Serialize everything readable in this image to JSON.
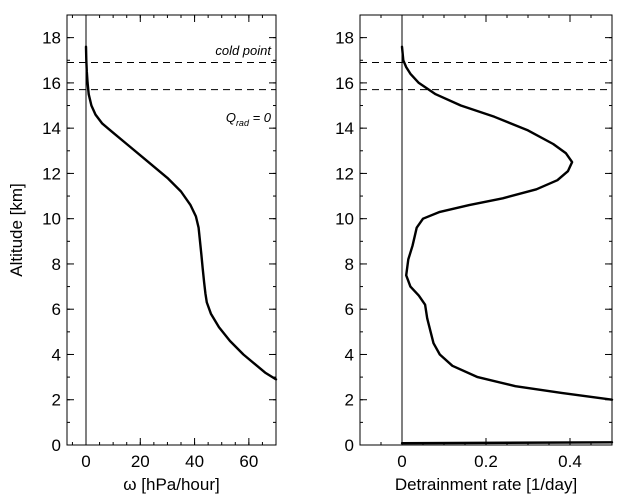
{
  "chart_data": [
    {
      "type": "line",
      "xlabel": "ω [hPa/hour]",
      "ylabel": "Altitude [km]",
      "xlim": [
        -7,
        70
      ],
      "ylim": [
        0,
        19
      ],
      "xticks": [
        0,
        20,
        40,
        60
      ],
      "yticks": [
        0,
        2,
        4,
        6,
        8,
        10,
        12,
        14,
        16,
        18
      ],
      "vline": 0,
      "hlines": [
        15.7,
        16.9
      ],
      "annotations": {
        "cold_point": "cold point",
        "q_main": "Q",
        "q_sub": "rad",
        "q_eq": " = 0"
      },
      "series": [
        {
          "x": [
            0,
            0.1,
            0.3,
            0.6,
            1,
            2,
            3.5,
            6,
            10,
            15,
            22,
            30,
            35,
            38.5,
            40.5,
            41.5,
            42,
            42.5,
            43,
            43.5,
            44,
            44.5,
            46,
            49,
            53,
            58,
            63,
            66,
            70
          ],
          "y": [
            17.6,
            17,
            16.5,
            16,
            15.5,
            15,
            14.6,
            14.2,
            13.8,
            13.3,
            12.6,
            11.8,
            11.2,
            10.6,
            10.1,
            9.6,
            9,
            8.4,
            7.8,
            7.2,
            6.7,
            6.3,
            5.8,
            5.2,
            4.6,
            4,
            3.5,
            3.2,
            2.9
          ]
        }
      ]
    },
    {
      "type": "line",
      "xlabel": "Detrainment rate [1/day]",
      "ylabel": "",
      "xlim": [
        -0.1,
        0.5
      ],
      "ylim": [
        0,
        19
      ],
      "xticks": [
        0,
        0.2,
        0.4
      ],
      "yticks": [
        0,
        2,
        4,
        6,
        8,
        10,
        12,
        14,
        16,
        18
      ],
      "vline": 0,
      "hlines": [
        15.7,
        16.9
      ],
      "series": [
        {
          "x": [
            0,
            0.003,
            0.01,
            0.02,
            0.04,
            0.08,
            0.14,
            0.22,
            0.3,
            0.36,
            0.39,
            0.405,
            0.395,
            0.37,
            0.32,
            0.24,
            0.16,
            0.09,
            0.05,
            0.035,
            0.03,
            0.025,
            0.015,
            0.01,
            0.02,
            0.04,
            0.055,
            0.06,
            0.068,
            0.075,
            0.09,
            0.12,
            0.18,
            0.27,
            0.38,
            0.5
          ],
          "y": [
            17.6,
            17,
            16.7,
            16.4,
            16,
            15.5,
            15,
            14.5,
            13.9,
            13.3,
            12.9,
            12.5,
            12.1,
            11.7,
            11.3,
            10.9,
            10.6,
            10.3,
            10,
            9.6,
            9.2,
            8.8,
            8.2,
            7.5,
            7,
            6.6,
            6.2,
            5.6,
            5,
            4.5,
            4,
            3.5,
            3,
            2.6,
            2.3,
            2
          ]
        },
        {
          "x": [
            0,
            0.5
          ],
          "y": [
            0.08,
            0.12
          ]
        }
      ]
    }
  ]
}
